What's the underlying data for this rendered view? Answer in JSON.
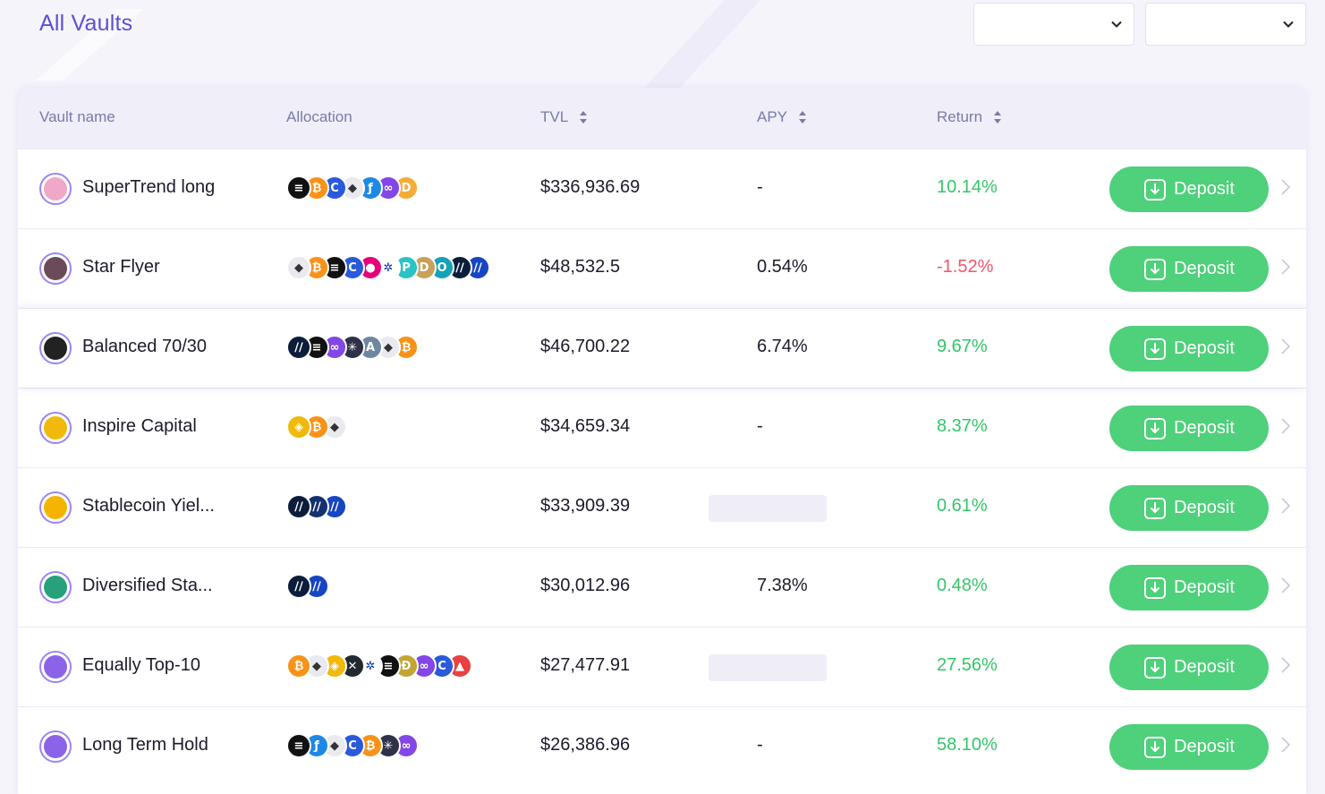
{
  "header": {
    "title": "All Vaults",
    "filter1_value": "",
    "filter2_value": ""
  },
  "table": {
    "columns": {
      "vault_name": "Vault name",
      "allocation": "Allocation",
      "tvl": "TVL",
      "apy": "APY",
      "return": "Return"
    },
    "deposit_label": "Deposit",
    "rows": [
      {
        "name": "SuperTrend long",
        "icon": "rainbow-swirl-icon",
        "icon_color": "#f0a7c8",
        "coins": [
          {
            "icon": "ethena-icon",
            "glyph": "≡",
            "bg": "#111111"
          },
          {
            "icon": "bitcoin-icon",
            "glyph": "₿",
            "bg": "#f7931a"
          },
          {
            "icon": "chainlink-icon",
            "glyph": "C",
            "bg": "#2a5ada"
          },
          {
            "icon": "ethereum-icon",
            "glyph": "◆",
            "bg": "#e9e9f0",
            "fg": "#333333"
          },
          {
            "icon": "fetch-icon",
            "glyph": "ƒ",
            "bg": "#1e88e5"
          },
          {
            "icon": "polygon-icon",
            "glyph": "∞",
            "bg": "#8247e5"
          },
          {
            "icon": "dai-icon",
            "glyph": "D",
            "bg": "#f5ac37"
          }
        ],
        "tvl": "$336,936.69",
        "apy": "-",
        "apy_loading": false,
        "return": "10.14%",
        "return_positive": true,
        "highlight": false
      },
      {
        "name": "Star Flyer",
        "icon": "star-icon",
        "icon_color": "#6b4a5a",
        "coins": [
          {
            "icon": "ethereum-icon",
            "glyph": "◆",
            "bg": "#e9e9f0",
            "fg": "#333333"
          },
          {
            "icon": "bitcoin-icon",
            "glyph": "₿",
            "bg": "#f7931a"
          },
          {
            "icon": "ethena-icon",
            "glyph": "≡",
            "bg": "#111111"
          },
          {
            "icon": "chainlink-icon",
            "glyph": "C",
            "bg": "#2a5ada"
          },
          {
            "icon": "polkadot-icon",
            "glyph": "●",
            "bg": "#e6007a"
          },
          {
            "icon": "cardano-icon",
            "glyph": "✲",
            "bg": "#ffffff",
            "fg": "#0033ad"
          },
          {
            "icon": "pendle-icon",
            "glyph": "P",
            "bg": "#2bc3c3"
          },
          {
            "icon": "dog-icon",
            "glyph": "D",
            "bg": "#c9a15a"
          },
          {
            "icon": "ondo-icon",
            "glyph": "O",
            "bg": "#16a2b8"
          },
          {
            "icon": "usual-icon",
            "glyph": "∕∕",
            "bg": "#0b1d3a"
          },
          {
            "icon": "usual-icon",
            "glyph": "∕∕",
            "bg": "#1746c2"
          }
        ],
        "tvl": "$48,532.5",
        "apy": "0.54%",
        "apy_loading": false,
        "return": "-1.52%",
        "return_positive": false,
        "highlight": false
      },
      {
        "name": "Balanced 70/30",
        "icon": "scales-icon",
        "icon_color": "#222222",
        "coins": [
          {
            "icon": "usual-icon",
            "glyph": "∕∕",
            "bg": "#0b1d3a"
          },
          {
            "icon": "ethena-icon",
            "glyph": "≡",
            "bg": "#111111"
          },
          {
            "icon": "polygon-icon",
            "glyph": "∞",
            "bg": "#8247e5"
          },
          {
            "icon": "cosmos-icon",
            "glyph": "✳",
            "bg": "#2e3148"
          },
          {
            "icon": "arbitrum-icon",
            "glyph": "A",
            "bg": "#6f86a0"
          },
          {
            "icon": "ethereum-icon",
            "glyph": "◆",
            "bg": "#e9e9f0",
            "fg": "#333333"
          },
          {
            "icon": "bitcoin-icon",
            "glyph": "₿",
            "bg": "#f7931a"
          }
        ],
        "tvl": "$46,700.22",
        "apy": "6.74%",
        "apy_loading": false,
        "return": "9.67%",
        "return_positive": true,
        "highlight": true
      },
      {
        "name": "Inspire Capital",
        "icon": "bnb-tile-icon",
        "icon_color": "#f0b90b",
        "coins": [
          {
            "icon": "bnb-icon",
            "glyph": "◈",
            "bg": "#f0b90b"
          },
          {
            "icon": "bitcoin-icon",
            "glyph": "₿",
            "bg": "#f7931a"
          },
          {
            "icon": "ethereum-icon",
            "glyph": "◆",
            "bg": "#e9e9f0",
            "fg": "#333333"
          }
        ],
        "tvl": "$34,659.34",
        "apy": "-",
        "apy_loading": false,
        "return": "8.37%",
        "return_positive": true,
        "highlight": false
      },
      {
        "name": "Stablecoin Yiel...",
        "icon": "coin-stack-icon",
        "icon_color": "#f5b400",
        "coins": [
          {
            "icon": "usual-icon",
            "glyph": "∕∕",
            "bg": "#0b1d3a"
          },
          {
            "icon": "usual-icon",
            "glyph": "∕∕",
            "bg": "#12316e"
          },
          {
            "icon": "usual-icon",
            "glyph": "∕∕",
            "bg": "#1746c2"
          }
        ],
        "tvl": "$33,909.39",
        "apy": "",
        "apy_loading": true,
        "return": "0.61%",
        "return_positive": true,
        "highlight": false
      },
      {
        "name": "Diversified Sta...",
        "icon": "stablecoins-icon",
        "icon_color": "#26a17b",
        "coins": [
          {
            "icon": "usual-icon",
            "glyph": "∕∕",
            "bg": "#0b1d3a"
          },
          {
            "icon": "usual-icon",
            "glyph": "∕∕",
            "bg": "#1746c2"
          }
        ],
        "tvl": "$30,012.96",
        "apy": "7.38%",
        "apy_loading": false,
        "return": "0.48%",
        "return_positive": true,
        "highlight": false
      },
      {
        "name": "Equally Top-10",
        "icon": "x-logo-icon",
        "icon_color": "#8a63e8",
        "coins": [
          {
            "icon": "bitcoin-icon",
            "glyph": "₿",
            "bg": "#f7931a"
          },
          {
            "icon": "ethereum-icon",
            "glyph": "◆",
            "bg": "#e9e9f0",
            "fg": "#333333"
          },
          {
            "icon": "bnb-icon",
            "glyph": "◈",
            "bg": "#f0b90b"
          },
          {
            "icon": "xrp-icon",
            "glyph": "✕",
            "bg": "#23292f"
          },
          {
            "icon": "cardano-icon",
            "glyph": "✲",
            "bg": "#ffffff",
            "fg": "#0033ad"
          },
          {
            "icon": "ethena-icon",
            "glyph": "≡",
            "bg": "#111111"
          },
          {
            "icon": "dogecoin-icon",
            "glyph": "Ð",
            "bg": "#c2a633"
          },
          {
            "icon": "polygon-icon",
            "glyph": "∞",
            "bg": "#8247e5"
          },
          {
            "icon": "chainlink-icon",
            "glyph": "C",
            "bg": "#2a5ada"
          },
          {
            "icon": "avalanche-icon",
            "glyph": "▲",
            "bg": "#e84142"
          }
        ],
        "tvl": "$27,477.91",
        "apy": "",
        "apy_loading": true,
        "return": "27.56%",
        "return_positive": true,
        "highlight": false
      },
      {
        "name": "Long Term Hold",
        "icon": "w-logo-icon",
        "icon_color": "#8a63e8",
        "coins": [
          {
            "icon": "ethena-icon",
            "glyph": "≡",
            "bg": "#111111"
          },
          {
            "icon": "fetch-icon",
            "glyph": "ƒ",
            "bg": "#1e88e5"
          },
          {
            "icon": "ethereum-icon",
            "glyph": "◆",
            "bg": "#e9e9f0",
            "fg": "#333333"
          },
          {
            "icon": "chainlink-icon",
            "glyph": "C",
            "bg": "#2a5ada"
          },
          {
            "icon": "bitcoin-icon",
            "glyph": "₿",
            "bg": "#f7931a"
          },
          {
            "icon": "cosmos-icon",
            "glyph": "✳",
            "bg": "#2e3148"
          },
          {
            "icon": "polygon-icon",
            "glyph": "∞",
            "bg": "#8247e5"
          }
        ],
        "tvl": "$26,386.96",
        "apy": "-",
        "apy_loading": false,
        "return": "58.10%",
        "return_positive": true,
        "highlight": false
      }
    ]
  }
}
